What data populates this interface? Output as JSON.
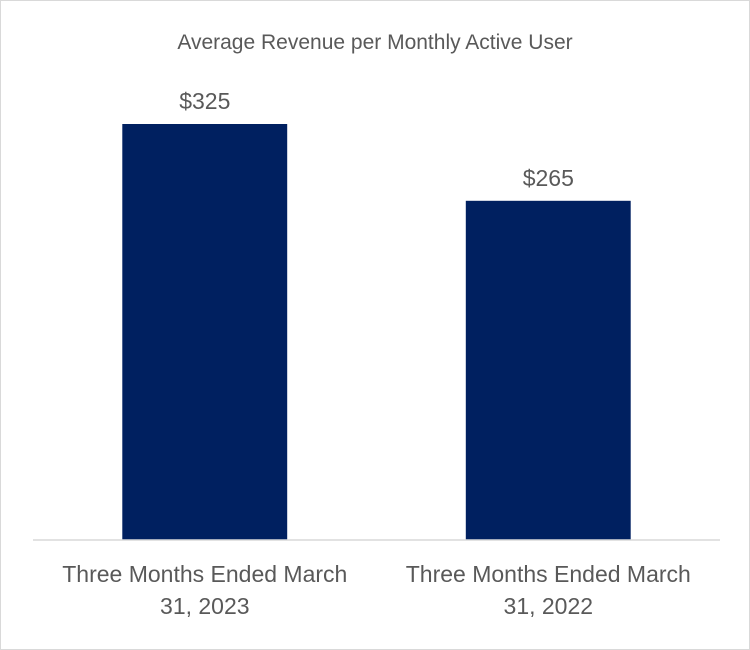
{
  "chart_data": {
    "type": "bar",
    "title": "Average Revenue per Monthly Active User",
    "categories": [
      [
        "Three Months Ended March",
        "31, 2023"
      ],
      [
        "Three Months Ended March",
        "31, 2022"
      ]
    ],
    "values": [
      325,
      265
    ],
    "data_labels": [
      "$325",
      "$265"
    ],
    "xlabel": "",
    "ylabel": "",
    "ylim": [
      0,
      350
    ],
    "grid": false,
    "legend": "none",
    "bar_color": "#002060",
    "axis_color": "#d9d9d9",
    "text_color": "#595959"
  }
}
